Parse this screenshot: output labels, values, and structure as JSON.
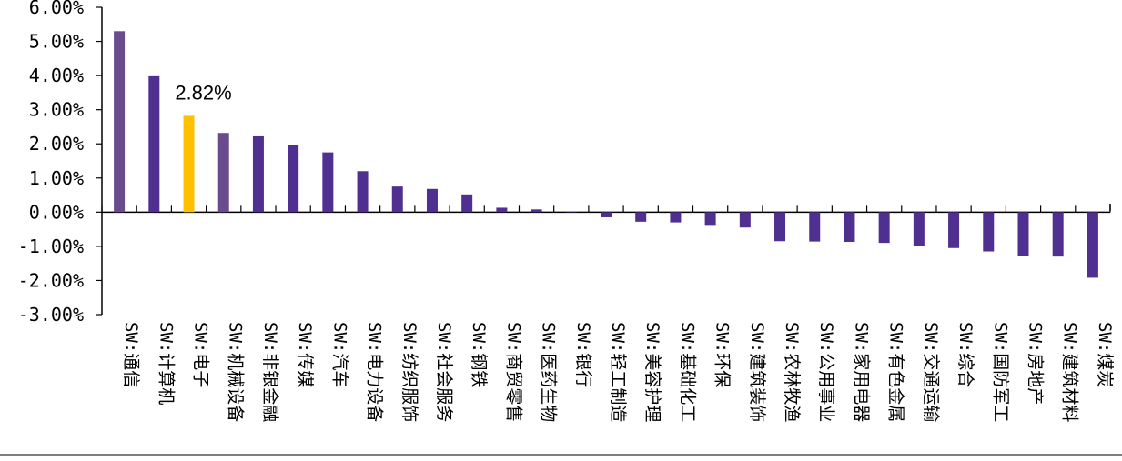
{
  "chart_data": {
    "type": "bar",
    "title": "",
    "xlabel": "",
    "ylabel": "",
    "ylim": [
      -3,
      6
    ],
    "y_ticks": [
      "-3.00%",
      "-2.00%",
      "-1.00%",
      "0.00%",
      "1.00%",
      "2.00%",
      "3.00%",
      "4.00%",
      "5.00%",
      "6.00%"
    ],
    "categories": [
      "SW:通信",
      "SW:计算机",
      "SW:电子",
      "SW:机械设备",
      "SW:非银金融",
      "SW:传媒",
      "SW:汽车",
      "SW:电力设备",
      "SW:纺织服饰",
      "SW:社会服务",
      "SW:钢铁",
      "SW:商贸零售",
      "SW:医药生物",
      "SW:银行",
      "SW:轻工制造",
      "SW:美容护理",
      "SW:基础化工",
      "SW:环保",
      "SW:建筑装饰",
      "SW:农林牧渔",
      "SW:公用事业",
      "SW:家用电器",
      "SW:有色金属",
      "SW:交通运输",
      "SW:综合",
      "SW:国防军工",
      "SW:房地产",
      "SW:建筑材料",
      "SW:煤炭"
    ],
    "values": [
      5.3,
      3.98,
      2.82,
      2.32,
      2.22,
      1.96,
      1.75,
      1.2,
      0.75,
      0.68,
      0.52,
      0.13,
      0.08,
      0.02,
      -0.15,
      -0.28,
      -0.3,
      -0.4,
      -0.45,
      -0.85,
      -0.86,
      -0.87,
      -0.9,
      -1.0,
      -1.05,
      -1.15,
      -1.28,
      -1.3,
      -1.92
    ],
    "colors": [
      "#6A4C8E",
      "#4F2F8F",
      "#FFC000",
      "#6A4C8E",
      "#4F2F8F",
      "#4F2F8F",
      "#4F2F8F",
      "#4F2F8F",
      "#4F2F8F",
      "#4F2F8F",
      "#4F2F8F",
      "#4F2F8F",
      "#4F2F8F",
      "#4F2F8F",
      "#4F2F8F",
      "#4F2F8F",
      "#4F2F8F",
      "#4F2F8F",
      "#4F2F8F",
      "#4F2F8F",
      "#4F2F8F",
      "#4F2F8F",
      "#4F2F8F",
      "#4F2F8F",
      "#4F2F8F",
      "#4F2F8F",
      "#4F2F8F",
      "#4F2F8F",
      "#4F2F8F"
    ],
    "annotations": [
      {
        "category": "SW:电子",
        "text": "2.82%"
      }
    ],
    "grid": false,
    "legend": "none"
  }
}
